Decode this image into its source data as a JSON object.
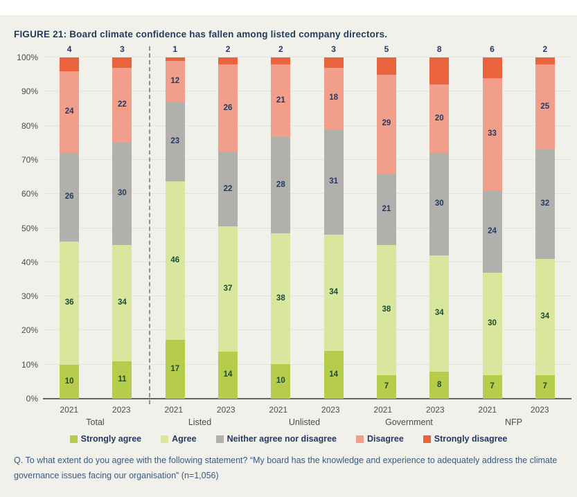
{
  "page": {
    "top_strip_color": "#ffffff",
    "background": "#f1f0ea"
  },
  "title": "FIGURE 21: Board climate confidence has fallen among listed company directors.",
  "question": "Q. To what extent do you agree with the following statement? “My board has the knowledge and experience to adequately address the climate governance issues facing our organisation” (n=1,056)",
  "colors": {
    "title_text": "#1d3c5e",
    "axis_text": "#4c4c49",
    "legend_text": "#223a63",
    "question_text": "#3b5a7e",
    "gridline": "#e3e2db",
    "baseline": "#61615d",
    "divider": "#8f8f8b"
  },
  "chart_data": {
    "type": "bar",
    "stacked": true,
    "units": "percent",
    "title": "FIGURE 21: Board climate confidence has fallen among listed company directors.",
    "ylim": [
      0,
      100
    ],
    "y_ticks": [
      "0%",
      "10%",
      "20%",
      "30%",
      "40%",
      "50%",
      "60%",
      "70%",
      "80%",
      "90%",
      "100%"
    ],
    "grid": true,
    "legend_position": "bottom",
    "groups": [
      "Total",
      "Listed",
      "Unlisted",
      "Government",
      "NFP"
    ],
    "bar_year_labels": [
      "2021",
      "2023",
      "2021",
      "2023",
      "2021",
      "2023",
      "2021",
      "2023",
      "2021",
      "2023"
    ],
    "divider_after_bar_index": 1,
    "series": [
      {
        "name": "Strongly agree",
        "color": "#b5cd4a",
        "label_color": "#1d4a33",
        "values": [
          10,
          11,
          17,
          14,
          10,
          14,
          7,
          8,
          7,
          7
        ]
      },
      {
        "name": "Agree",
        "color": "#d8e69e",
        "label_color": "#1d4a33",
        "values": [
          36,
          34,
          46,
          37,
          38,
          34,
          38,
          34,
          30,
          34
        ]
      },
      {
        "name": "Neither agree nor disagree",
        "color": "#b1b0ac",
        "label_color": "#223a63",
        "values": [
          26,
          30,
          23,
          22,
          28,
          31,
          21,
          30,
          24,
          32
        ]
      },
      {
        "name": "Disagree",
        "color": "#f19e8b",
        "label_color": "#223a63",
        "values": [
          24,
          22,
          12,
          26,
          21,
          18,
          29,
          20,
          33,
          25
        ]
      },
      {
        "name": "Strongly disagree",
        "color": "#e9633d",
        "label_color": "#223a63",
        "values": [
          4,
          3,
          1,
          2,
          2,
          3,
          5,
          8,
          6,
          2
        ],
        "labels_above_bar": true
      }
    ]
  }
}
